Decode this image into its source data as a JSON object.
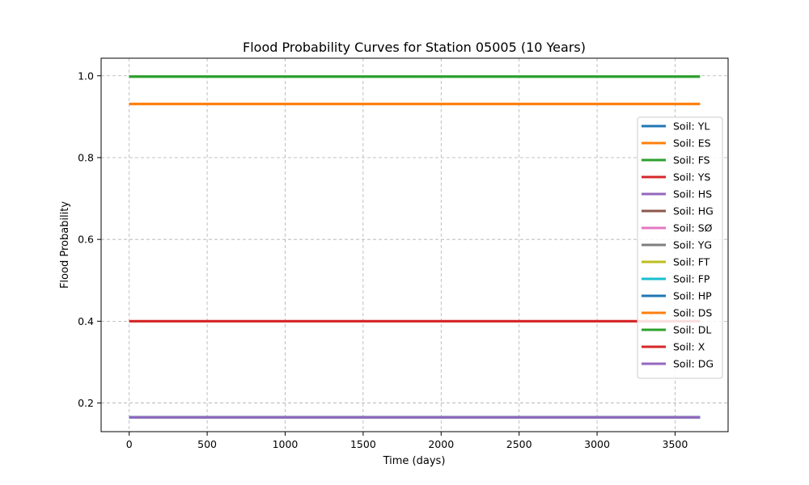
{
  "chart_data": {
    "type": "line",
    "title": "Flood Probability Curves for Station 05005 (10 Years)",
    "xlabel": "Time (days)",
    "ylabel": "Flood Probability",
    "xlim": [
      -180,
      3840
    ],
    "ylim": [
      0.13,
      1.043
    ],
    "xticks": [
      0,
      500,
      1000,
      1500,
      2000,
      2500,
      3000,
      3500
    ],
    "yticks": [
      0.2,
      0.4,
      0.6,
      0.8,
      1.0
    ],
    "xtick_labels": [
      "0",
      "500",
      "1000",
      "1500",
      "2000",
      "2500",
      "3000",
      "3500"
    ],
    "ytick_labels": [
      "0.2",
      "0.4",
      "0.6",
      "0.8",
      "1.0"
    ],
    "grid": true,
    "legend_position": "right",
    "x": [
      0,
      3660
    ],
    "series": [
      {
        "name": "Soil: YL",
        "color": "#1f77b4",
        "values": [
          0.165,
          0.165
        ]
      },
      {
        "name": "Soil: ES",
        "color": "#ff7f0e",
        "values": [
          0.931,
          0.931
        ]
      },
      {
        "name": "Soil: FS",
        "color": "#2ca02c",
        "values": [
          0.998,
          0.998
        ]
      },
      {
        "name": "Soil: YS",
        "color": "#d62728",
        "values": [
          0.4,
          0.4
        ]
      },
      {
        "name": "Soil: HS",
        "color": "#9467bd",
        "values": [
          0.165,
          0.165
        ]
      },
      {
        "name": "Soil: HG",
        "color": "#8c564b",
        "values": [
          0.165,
          0.165
        ]
      },
      {
        "name": "Soil: SØ",
        "color": "#e377c2",
        "values": [
          0.165,
          0.165
        ]
      },
      {
        "name": "Soil: YG",
        "color": "#7f7f7f",
        "values": [
          0.165,
          0.165
        ]
      },
      {
        "name": "Soil: FT",
        "color": "#bcbd22",
        "values": [
          0.165,
          0.165
        ]
      },
      {
        "name": "Soil: FP",
        "color": "#17becf",
        "values": [
          0.165,
          0.165
        ]
      },
      {
        "name": "Soil: HP",
        "color": "#1f77b4",
        "values": [
          0.165,
          0.165
        ]
      },
      {
        "name": "Soil: DS",
        "color": "#ff7f0e",
        "values": [
          0.931,
          0.931
        ]
      },
      {
        "name": "Soil: DL",
        "color": "#2ca02c",
        "values": [
          0.998,
          0.998
        ]
      },
      {
        "name": "Soil: X",
        "color": "#d62728",
        "values": [
          0.4,
          0.4
        ]
      },
      {
        "name": "Soil: DG",
        "color": "#9467bd",
        "values": [
          0.165,
          0.165
        ]
      }
    ]
  }
}
